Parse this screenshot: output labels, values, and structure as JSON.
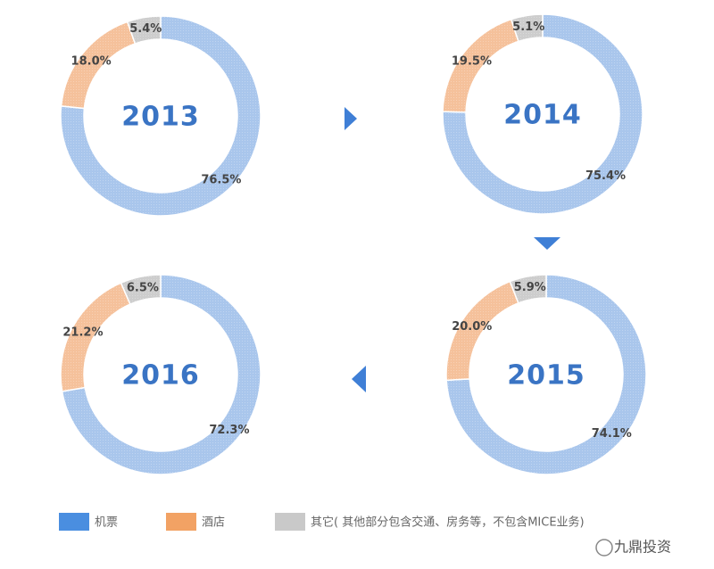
{
  "chart_data": [
    {
      "type": "pie",
      "title": "2013",
      "categories": [
        "机票",
        "酒店",
        "其它( 其他部分包含交通、房务等，不包含MICE业务)"
      ],
      "values": [
        76.5,
        18.0,
        5.4
      ],
      "value_labels": [
        "76.5%",
        "18.0%",
        "5.4%"
      ],
      "colors": [
        "#a9c6ec",
        "#f5c19b",
        "#cdcdcd"
      ],
      "legend_colors": [
        "#4a8ee0",
        "#f2a264",
        "#c9c9c9"
      ]
    },
    {
      "type": "pie",
      "title": "2014",
      "categories": [
        "机票",
        "酒店",
        "其它( 其他部分包含交通、房务等，不包含MICE业务)"
      ],
      "values": [
        75.4,
        19.5,
        5.1
      ],
      "value_labels": [
        "75.4%",
        "19.5%",
        "5.1%"
      ],
      "colors": [
        "#a9c6ec",
        "#f5c19b",
        "#cdcdcd"
      ]
    },
    {
      "type": "pie",
      "title": "2015",
      "categories": [
        "机票",
        "酒店",
        "其它( 其他部分包含交通、房务等，不包含MICE业务)"
      ],
      "values": [
        74.1,
        20.0,
        5.9
      ],
      "value_labels": [
        "74.1%",
        "20.0%",
        "5.9%"
      ],
      "colors": [
        "#a9c6ec",
        "#f5c19b",
        "#cdcdcd"
      ]
    },
    {
      "type": "pie",
      "title": "2016",
      "categories": [
        "机票",
        "酒店",
        "其它( 其他部分包含交通、房务等，不包含MICE业务)"
      ],
      "values": [
        72.3,
        21.2,
        6.5
      ],
      "value_labels": [
        "72.3%",
        "21.2%",
        "6.5%"
      ],
      "colors": [
        "#a9c6ec",
        "#f5c19b",
        "#cdcdcd"
      ]
    }
  ],
  "watermark": "九鼎投资"
}
